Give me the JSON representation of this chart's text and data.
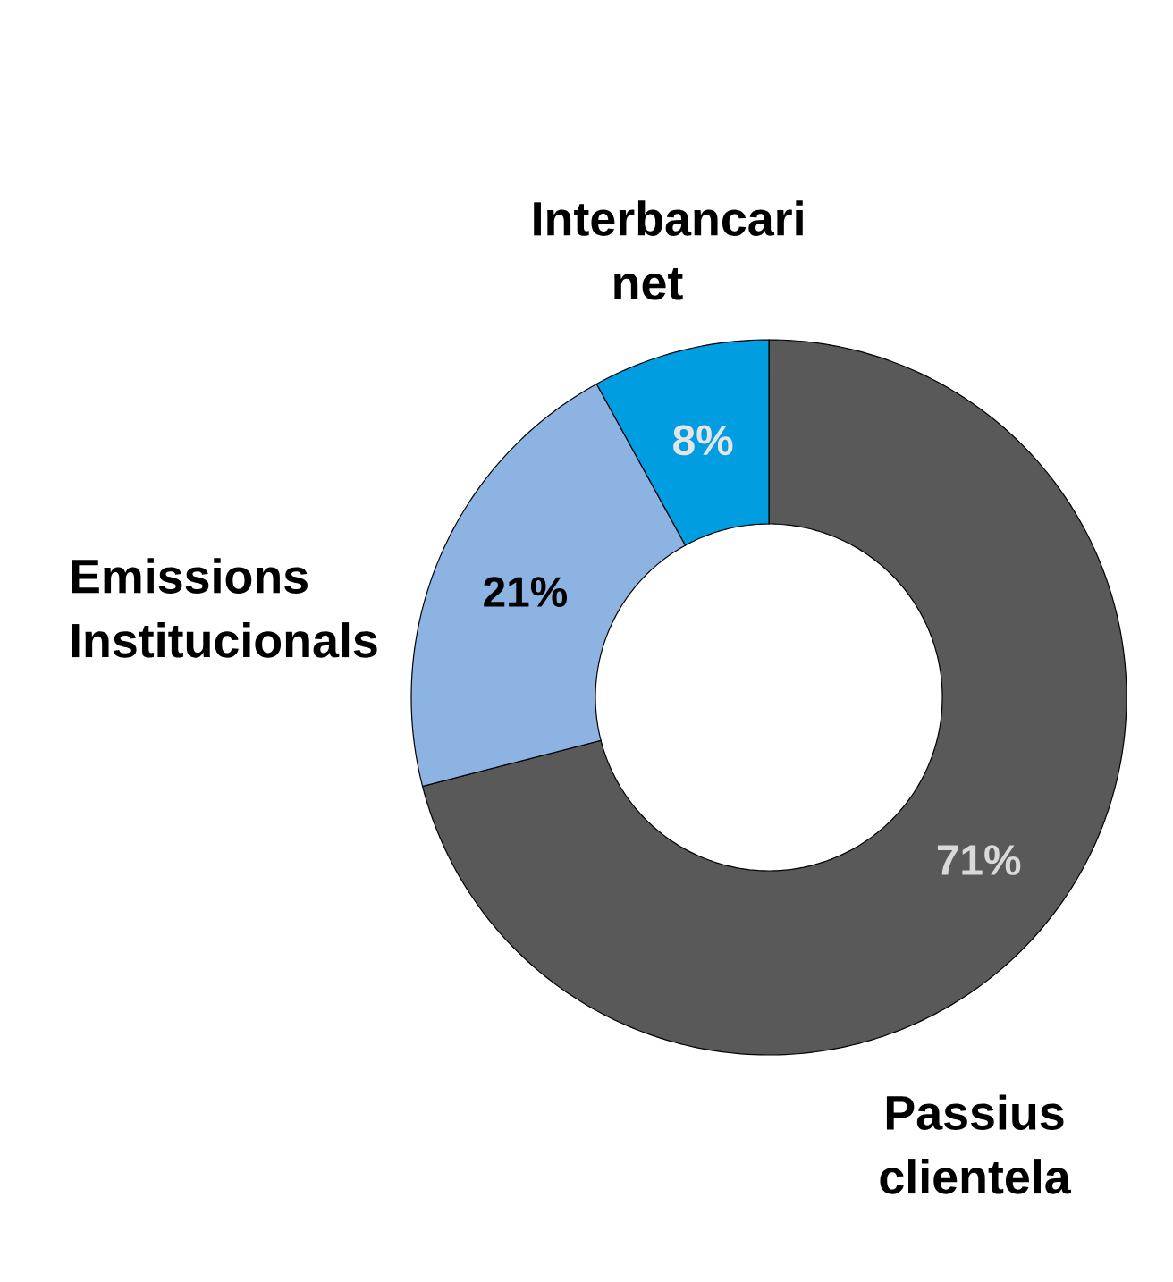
{
  "chart_data": {
    "type": "donut",
    "categories": [
      "Passius clientela",
      "Emissions Institucionals",
      "Interbancari net"
    ],
    "values": [
      71,
      21,
      8
    ],
    "colors": [
      "#595959",
      "#8db3e2",
      "#009ee0"
    ],
    "value_labels": [
      "71%",
      "21%",
      "8%"
    ]
  }
}
